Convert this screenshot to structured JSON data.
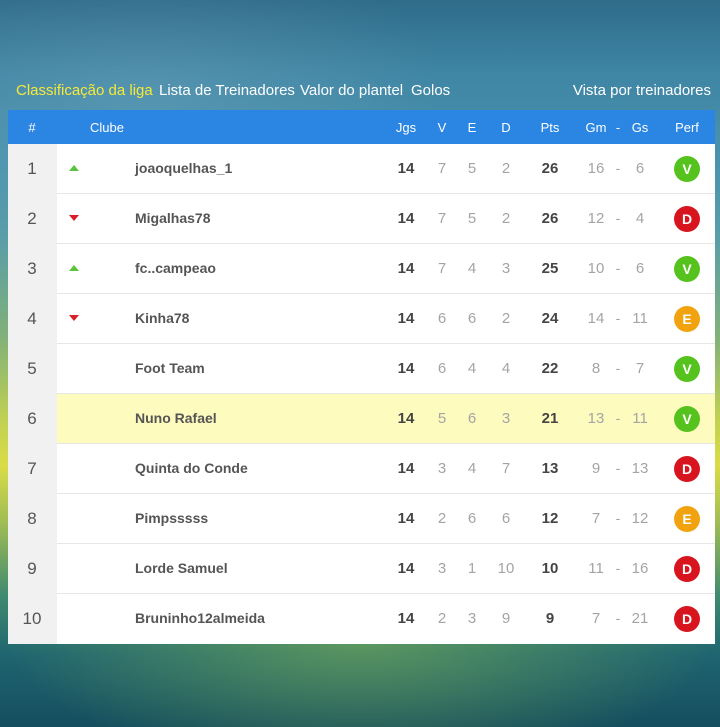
{
  "nav": {
    "tabs": [
      "Classificação da liga",
      "Lista de Treinadores",
      "Valor do plantel",
      "Golos"
    ],
    "right_link": "Vista por treinadores"
  },
  "table": {
    "headers": {
      "rank": "#",
      "club": "Clube",
      "games": "Jgs",
      "wins": "V",
      "draws": "E",
      "losses": "D",
      "points": "Pts",
      "goals_for": "Gm",
      "separator": "-",
      "goals_against": "Gs",
      "form": "Perf"
    },
    "highlighted_rank": 6,
    "rows": [
      {
        "rank": "1",
        "trend": "up",
        "club": "joaoquelhas_1",
        "games": "14",
        "wins": "7",
        "draws": "5",
        "losses": "2",
        "points": "26",
        "goals_for": "16",
        "sep": "-",
        "goals_against": "6",
        "form": "V"
      },
      {
        "rank": "2",
        "trend": "down",
        "club": "Migalhas78",
        "games": "14",
        "wins": "7",
        "draws": "5",
        "losses": "2",
        "points": "26",
        "goals_for": "12",
        "sep": "-",
        "goals_against": "4",
        "form": "D"
      },
      {
        "rank": "3",
        "trend": "up",
        "club": "fc..campeao",
        "games": "14",
        "wins": "7",
        "draws": "4",
        "losses": "3",
        "points": "25",
        "goals_for": "10",
        "sep": "-",
        "goals_against": "6",
        "form": "V"
      },
      {
        "rank": "4",
        "trend": "down",
        "club": "Kinha78",
        "games": "14",
        "wins": "6",
        "draws": "6",
        "losses": "2",
        "points": "24",
        "goals_for": "14",
        "sep": "-",
        "goals_against": "11",
        "form": "E"
      },
      {
        "rank": "5",
        "trend": "none",
        "club": "Foot Team",
        "games": "14",
        "wins": "6",
        "draws": "4",
        "losses": "4",
        "points": "22",
        "goals_for": "8",
        "sep": "-",
        "goals_against": "7",
        "form": "V"
      },
      {
        "rank": "6",
        "trend": "none",
        "club": "Nuno Rafael",
        "games": "14",
        "wins": "5",
        "draws": "6",
        "losses": "3",
        "points": "21",
        "goals_for": "13",
        "sep": "-",
        "goals_against": "11",
        "form": "V"
      },
      {
        "rank": "7",
        "trend": "none",
        "club": "Quinta do Conde",
        "games": "14",
        "wins": "3",
        "draws": "4",
        "losses": "7",
        "points": "13",
        "goals_for": "9",
        "sep": "-",
        "goals_against": "13",
        "form": "D"
      },
      {
        "rank": "8",
        "trend": "none",
        "club": "Pimpsssss",
        "games": "14",
        "wins": "2",
        "draws": "6",
        "losses": "6",
        "points": "12",
        "goals_for": "7",
        "sep": "-",
        "goals_against": "12",
        "form": "E"
      },
      {
        "rank": "9",
        "trend": "none",
        "club": "Lorde Samuel",
        "games": "14",
        "wins": "3",
        "draws": "1",
        "losses": "10",
        "points": "10",
        "goals_for": "11",
        "sep": "-",
        "goals_against": "16",
        "form": "D"
      },
      {
        "rank": "10",
        "trend": "none",
        "club": "Bruninho12almeida",
        "games": "14",
        "wins": "2",
        "draws": "3",
        "losses": "9",
        "points": "9",
        "goals_for": "7",
        "sep": "-",
        "goals_against": "21",
        "form": "D"
      }
    ]
  },
  "colors": {
    "header_blue": "#2b85e3",
    "active_tab": "#f5e93a",
    "highlight_row": "#fdfbbe",
    "win": "#55c21d",
    "loss": "#d8151f",
    "draw": "#f0a30f",
    "trend_up": "#5bc23b",
    "trend_down": "#d8202a"
  }
}
